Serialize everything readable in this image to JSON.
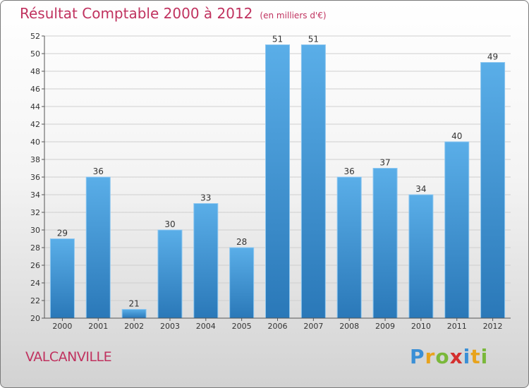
{
  "header": {
    "title": "Résultat Comptable 2000 à 2012",
    "unit": "(en milliers d'€)"
  },
  "footer": {
    "city": "VALCANVILLE"
  },
  "logo": {
    "letters": [
      "P",
      "r",
      "o",
      "x",
      "i",
      "t",
      "i"
    ],
    "colors": [
      "#3a8fd6",
      "#e8a31c",
      "#7ab83a",
      "#d4302f",
      "#3a8fd6",
      "#e8a31c",
      "#7ab83a"
    ]
  },
  "colors": {
    "bar": "#3d8fd8",
    "title": "#c0325f"
  },
  "chart_data": {
    "type": "bar",
    "title": "Résultat Comptable 2000 à 2012",
    "xlabel": "",
    "ylabel": "",
    "categories": [
      "2000",
      "2001",
      "2002",
      "2003",
      "2004",
      "2005",
      "2006",
      "2007",
      "2008",
      "2009",
      "2010",
      "2011",
      "2012"
    ],
    "values": [
      29,
      36,
      21,
      30,
      33,
      28,
      51,
      51,
      36,
      37,
      34,
      40,
      49
    ],
    "ylim": [
      20,
      52
    ],
    "yticks": [
      20,
      22,
      24,
      26,
      28,
      30,
      32,
      34,
      36,
      38,
      40,
      42,
      44,
      46,
      48,
      50,
      52
    ],
    "grid": true
  }
}
